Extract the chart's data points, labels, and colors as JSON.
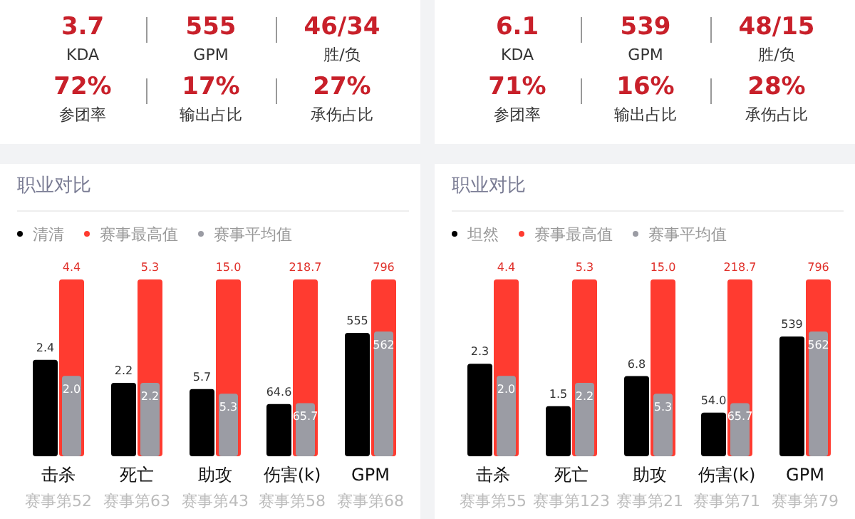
{
  "chart_data": [
    {
      "type": "other",
      "annotations": [
        "3.7",
        "KDA",
        "555",
        "GPM",
        "46/34",
        "胜/负",
        "72%",
        "参团率",
        "17%",
        "输出占比",
        "27%",
        "承伤占比"
      ]
    },
    {
      "type": "bar",
      "title": "职业对比",
      "legend": "top right",
      "categories": [
        "击杀"
      ],
      "annotations": [
        "赛事第52"
      ],
      "series": [
        {
          "name": "清清",
          "color": "#000000",
          "values": [
            2.4
          ],
          "value_labels": [
            "2.4"
          ]
        },
        {
          "name": "赛事最高值",
          "color": "#ff3b30",
          "values": [
            4.4
          ],
          "value_labels": [
            "4.4"
          ]
        },
        {
          "name": "赛事平均值",
          "color": "#9b9ca4",
          "values": [
            2.0
          ],
          "value_labels": [
            "2.0"
          ]
        }
      ]
    },
    {
      "type": "bar",
      "categories": [
        "死亡"
      ],
      "annotations": [
        "赛事第63"
      ],
      "series": [
        {
          "color": "#000000",
          "values": [
            2.2
          ],
          "value_labels": [
            "2.2"
          ]
        },
        {
          "color": "#ff3b30",
          "values": [
            5.3
          ],
          "value_labels": [
            "5.3"
          ]
        },
        {
          "color": "#9b9ca4",
          "values": [
            2.2
          ],
          "value_labels": [
            "2.2"
          ]
        }
      ]
    },
    {
      "type": "bar",
      "categories": [
        "助攻"
      ],
      "annotations": [
        "赛事第43"
      ],
      "series": [
        {
          "color": "#000000",
          "values": [
            5.7
          ],
          "value_labels": [
            "5.7"
          ]
        },
        {
          "color": "#ff3b30",
          "values": [
            15.0
          ],
          "value_labels": [
            "15.0"
          ]
        },
        {
          "color": "#9b9ca4",
          "values": [
            5.3
          ],
          "value_labels": [
            "5.3"
          ]
        }
      ]
    },
    {
      "type": "bar",
      "categories": [
        "伤害(k)"
      ],
      "annotations": [
        "赛事第58"
      ],
      "series": [
        {
          "color": "#000000",
          "values": [
            64.6
          ],
          "value_labels": [
            "64.6"
          ]
        },
        {
          "color": "#ff3b30",
          "values": [
            218.7
          ],
          "value_labels": [
            "218.7"
          ]
        },
        {
          "color": "#9b9ca4",
          "values": [
            65.7
          ],
          "value_labels": [
            "65.7"
          ]
        }
      ]
    },
    {
      "type": "bar",
      "categories": [
        "GPM"
      ],
      "annotations": [
        "赛事第68"
      ],
      "series": [
        {
          "color": "#000000",
          "values": [
            555
          ],
          "value_labels": [
            "555"
          ]
        },
        {
          "color": "#ff3b30",
          "values": [
            796
          ],
          "value_labels": [
            "796"
          ]
        },
        {
          "color": "#9b9ca4",
          "values": [
            562
          ],
          "value_labels": [
            "562"
          ]
        }
      ]
    },
    {
      "type": "other",
      "annotations": [
        "6.1",
        "KDA",
        "539",
        "GPM",
        "48/15",
        "胜/负",
        "71%",
        "参团率",
        "16%",
        "输出占比",
        "28%",
        "承伤占比"
      ]
    },
    {
      "type": "bar",
      "title": "职业对比",
      "legend": "top right",
      "categories": [
        "击杀"
      ],
      "annotations": [
        "赛事第55"
      ],
      "series": [
        {
          "name": "坦然",
          "color": "#000000",
          "values": [
            2.3
          ],
          "value_labels": [
            "2.3"
          ]
        },
        {
          "name": "赛事最高值",
          "color": "#ff3b30",
          "values": [
            4.4
          ],
          "value_labels": [
            "4.4"
          ]
        },
        {
          "name": "赛事平均值",
          "color": "#9b9ca4",
          "values": [
            2.0
          ],
          "value_labels": [
            "2.0"
          ]
        }
      ]
    },
    {
      "type": "bar",
      "categories": [
        "死亡"
      ],
      "annotations": [
        "赛事第123"
      ],
      "series": [
        {
          "color": "#000000",
          "values": [
            1.5
          ],
          "value_labels": [
            "1.5"
          ]
        },
        {
          "color": "#ff3b30",
          "values": [
            5.3
          ],
          "value_labels": [
            "5.3"
          ]
        },
        {
          "color": "#9b9ca4",
          "values": [
            2.2
          ],
          "value_labels": [
            "2.2"
          ]
        }
      ]
    },
    {
      "type": "bar",
      "categories": [
        "助攻"
      ],
      "annotations": [
        "赛事第21"
      ],
      "series": [
        {
          "color": "#000000",
          "values": [
            6.8
          ],
          "value_labels": [
            "6.8"
          ]
        },
        {
          "color": "#ff3b30",
          "values": [
            15.0
          ],
          "value_labels": [
            "15.0"
          ]
        },
        {
          "color": "#9b9ca4",
          "values": [
            5.3
          ],
          "value_labels": [
            "5.3"
          ]
        }
      ]
    },
    {
      "type": "bar",
      "categories": [
        "伤害(k)"
      ],
      "annotations": [
        "赛事第71"
      ],
      "series": [
        {
          "color": "#000000",
          "values": [
            54.0
          ],
          "value_labels": [
            "54.0"
          ]
        },
        {
          "color": "#ff3b30",
          "values": [
            218.7
          ],
          "value_labels": [
            "218.7"
          ]
        },
        {
          "color": "#9b9ca4",
          "values": [
            65.7
          ],
          "value_labels": [
            "65.7"
          ]
        }
      ]
    },
    {
      "type": "bar",
      "categories": [
        "GPM"
      ],
      "annotations": [
        "赛事第79"
      ],
      "series": [
        {
          "color": "#000000",
          "values": [
            539
          ],
          "value_labels": [
            "539"
          ]
        },
        {
          "color": "#ff3b30",
          "values": [
            796
          ],
          "value_labels": [
            "796"
          ]
        },
        {
          "color": "#9b9ca4",
          "values": [
            562
          ],
          "value_labels": [
            "562"
          ]
        }
      ]
    }
  ]
}
